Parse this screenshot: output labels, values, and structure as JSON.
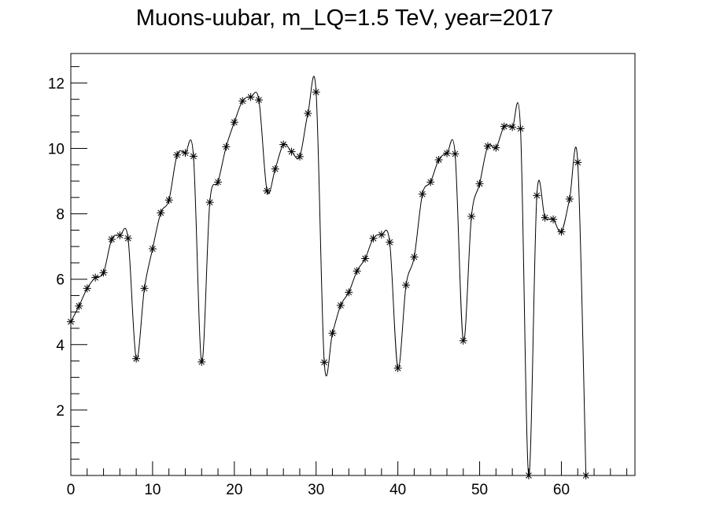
{
  "chart_data": {
    "type": "line",
    "title": "Muons-uubar, m_LQ=1.5 TeV, year=2017",
    "xlabel": "",
    "ylabel": "",
    "xlim": [
      0,
      69
    ],
    "ylim": [
      0,
      12.9
    ],
    "x_ticks": [
      0,
      10,
      20,
      30,
      40,
      50,
      60
    ],
    "y_ticks": [
      2,
      4,
      6,
      8,
      10,
      12
    ],
    "grid": false,
    "marker": "asterisk",
    "series": [
      {
        "values": [
          4.7,
          5.18,
          5.72,
          6.05,
          6.2,
          7.22,
          7.34,
          7.25,
          3.57,
          5.72,
          6.93,
          8.03,
          8.42,
          9.8,
          9.86,
          9.76,
          3.47,
          8.35,
          8.97,
          10.05,
          10.8,
          11.45,
          11.57,
          11.48,
          8.7,
          9.37,
          10.12,
          9.9,
          9.75,
          11.07,
          11.72,
          3.46,
          4.35,
          5.2,
          5.6,
          6.25,
          6.63,
          7.25,
          7.36,
          7.13,
          3.28,
          5.82,
          6.68,
          8.6,
          8.97,
          9.65,
          9.85,
          9.83,
          4.12,
          7.92,
          8.92,
          10.07,
          10.02,
          10.67,
          10.65,
          10.6,
          0.0,
          8.56,
          7.88,
          7.83,
          7.45,
          8.45,
          9.57,
          0.0
        ]
      }
    ]
  }
}
